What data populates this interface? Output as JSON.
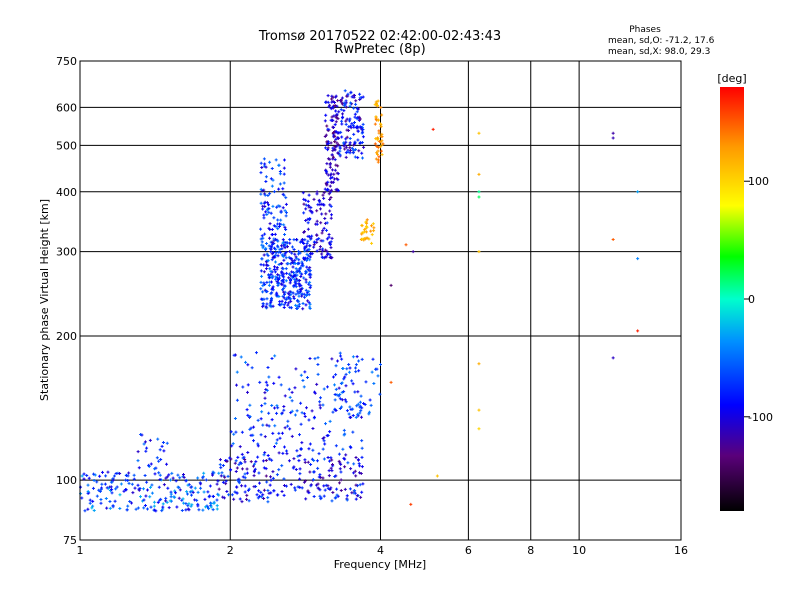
{
  "header": {
    "title_line1": "Tromsø 20170522 02:42:00-02:43:43",
    "title_line2": "RwPretec (8p)"
  },
  "stats": {
    "heading": "Phases",
    "line_o": "mean, sd,O: -71.2, 17.6",
    "line_x": "mean, sd,X:  98.0, 29.3"
  },
  "colorbar": {
    "unit": "[deg]",
    "min": -180,
    "max": 180,
    "ticks": [
      {
        "value": 100,
        "label": "100"
      },
      {
        "value": 0,
        "label": "0"
      },
      {
        "value": -100,
        "label": "-100"
      }
    ]
  },
  "chart_data": {
    "type": "scatter",
    "title": "Tromsø 20170522 02:42:00-02:43:43",
    "subtitle": "RwPretec (8p)",
    "xlabel": "Frequency [MHz]",
    "ylabel": "Stationary phase Virtual Height [km]",
    "x_scale": "log",
    "y_scale": "log",
    "xlim": [
      1,
      16
    ],
    "ylim": [
      75,
      750
    ],
    "x_ticks": [
      1,
      2,
      4,
      6,
      8,
      10,
      16
    ],
    "y_ticks": [
      75,
      100,
      200,
      300,
      400,
      500,
      600,
      750
    ],
    "grid": true,
    "color_value": "phase_deg",
    "series": [
      {
        "kind": "cluster",
        "x": [
          1.0,
          1.9
        ],
        "y": [
          86,
          104
        ],
        "phase": [
          -110,
          -20
        ],
        "count": 230
      },
      {
        "kind": "cluster",
        "x": [
          1.3,
          1.5
        ],
        "y": [
          104,
          125
        ],
        "phase": [
          -110,
          -40
        ],
        "count": 25
      },
      {
        "kind": "cluster",
        "x": [
          1.9,
          3.7
        ],
        "y": [
          90,
          112
        ],
        "phase": [
          -130,
          -50
        ],
        "count": 240
      },
      {
        "kind": "cluster",
        "x": [
          2.0,
          3.7
        ],
        "y": [
          112,
          185
        ],
        "phase": [
          -110,
          -40
        ],
        "count": 200
      },
      {
        "kind": "cluster",
        "x": [
          3.2,
          4.0
        ],
        "y": [
          135,
          180
        ],
        "phase": [
          -90,
          -40
        ],
        "count": 55
      },
      {
        "kind": "cluster",
        "x": [
          2.3,
          2.9
        ],
        "y": [
          228,
          320
        ],
        "phase": [
          -110,
          -40
        ],
        "count": 380
      },
      {
        "kind": "cluster",
        "x": [
          2.3,
          2.6
        ],
        "y": [
          320,
          470
        ],
        "phase": [
          -110,
          -40
        ],
        "count": 90
      },
      {
        "kind": "cluster",
        "x": [
          2.8,
          3.2
        ],
        "y": [
          290,
          400
        ],
        "phase": [
          -130,
          -70
        ],
        "count": 110
      },
      {
        "kind": "cluster",
        "x": [
          3.1,
          3.3
        ],
        "y": [
          400,
          640
        ],
        "phase": [
          -140,
          -80
        ],
        "count": 130
      },
      {
        "kind": "cluster",
        "x": [
          3.3,
          3.7
        ],
        "y": [
          470,
          650
        ],
        "phase": [
          -130,
          -50
        ],
        "count": 130
      },
      {
        "kind": "cluster",
        "x": [
          3.9,
          4.05
        ],
        "y": [
          460,
          620
        ],
        "phase": [
          100,
          150
        ],
        "count": 45
      },
      {
        "kind": "cluster",
        "x": [
          3.65,
          3.9
        ],
        "y": [
          312,
          350
        ],
        "phase": [
          100,
          140
        ],
        "count": 30
      },
      {
        "kind": "point",
        "x": 5.1,
        "y": 540,
        "phase": 170
      },
      {
        "kind": "point",
        "x": 4.5,
        "y": 310,
        "phase": 150
      },
      {
        "kind": "point",
        "x": 4.65,
        "y": 300,
        "phase": -120
      },
      {
        "kind": "point",
        "x": 4.2,
        "y": 255,
        "phase": -140
      },
      {
        "kind": "point",
        "x": 4.2,
        "y": 160,
        "phase": 150
      },
      {
        "kind": "point",
        "x": 4.6,
        "y": 89,
        "phase": 160
      },
      {
        "kind": "point",
        "x": 5.2,
        "y": 102,
        "phase": 110
      },
      {
        "kind": "point",
        "x": 6.3,
        "y": 530,
        "phase": 110
      },
      {
        "kind": "point",
        "x": 6.3,
        "y": 435,
        "phase": 120
      },
      {
        "kind": "point",
        "x": 6.3,
        "y": 400,
        "phase": 10
      },
      {
        "kind": "point",
        "x": 6.3,
        "y": 390,
        "phase": 20
      },
      {
        "kind": "point",
        "x": 6.3,
        "y": 300,
        "phase": 110
      },
      {
        "kind": "point",
        "x": 6.3,
        "y": 175,
        "phase": 120
      },
      {
        "kind": "point",
        "x": 6.3,
        "y": 140,
        "phase": 110
      },
      {
        "kind": "point",
        "x": 6.3,
        "y": 128,
        "phase": 100
      },
      {
        "kind": "point",
        "x": 11.7,
        "y": 530,
        "phase": -120
      },
      {
        "kind": "point",
        "x": 11.7,
        "y": 518,
        "phase": -115
      },
      {
        "kind": "point",
        "x": 11.7,
        "y": 318,
        "phase": 150
      },
      {
        "kind": "point",
        "x": 11.7,
        "y": 180,
        "phase": -110
      },
      {
        "kind": "point",
        "x": 13.1,
        "y": 400,
        "phase": -30
      },
      {
        "kind": "point",
        "x": 13.1,
        "y": 290,
        "phase": -40
      },
      {
        "kind": "point",
        "x": 13.1,
        "y": 205,
        "phase": 170
      }
    ]
  }
}
